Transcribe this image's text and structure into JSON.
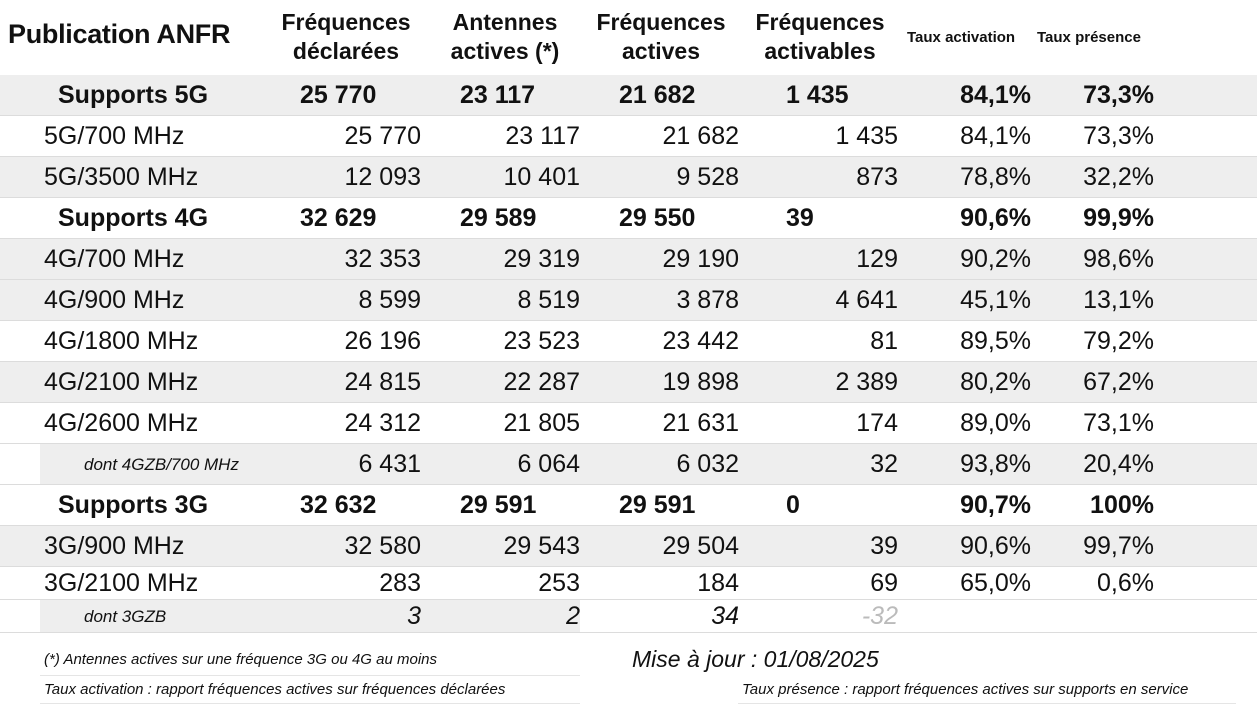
{
  "title": "Publication ANFR",
  "headers": {
    "declared": [
      "Fréquences",
      "déclarées"
    ],
    "antennas": [
      "Antennes",
      "actives (*)"
    ],
    "active": [
      "Fréquences",
      "actives"
    ],
    "activable": [
      "Fréquences",
      "activables"
    ],
    "rate_activation": "Taux activation",
    "rate_presence": "Taux présence"
  },
  "rows": [
    {
      "label": "Supports 5G",
      "declared": "25 770",
      "antennas": "23 117",
      "active": "21 682",
      "activable": "1 435",
      "activation": "84,1%",
      "presence": "73,3%"
    },
    {
      "label": "5G/700 MHz",
      "declared": "25 770",
      "antennas": "23 117",
      "active": "21 682",
      "activable": "1 435",
      "activation": "84,1%",
      "presence": "73,3%"
    },
    {
      "label": "5G/3500 MHz",
      "declared": "12 093",
      "antennas": "10 401",
      "active": "9 528",
      "activable": "873",
      "activation": "78,8%",
      "presence": "32,2%"
    },
    {
      "label": "Supports 4G",
      "declared": "32 629",
      "antennas": "29 589",
      "active": "29 550",
      "activable": "39",
      "activation": "90,6%",
      "presence": "99,9%"
    },
    {
      "label": "4G/700 MHz",
      "declared": "32 353",
      "antennas": "29 319",
      "active": "29 190",
      "activable": "129",
      "activation": "90,2%",
      "presence": "98,6%"
    },
    {
      "label": "4G/900 MHz",
      "declared": "8 599",
      "antennas": "8 519",
      "active": "3 878",
      "activable": "4 641",
      "activation": "45,1%",
      "presence": "13,1%"
    },
    {
      "label": "4G/1800 MHz",
      "declared": "26 196",
      "antennas": "23 523",
      "active": "23 442",
      "activable": "81",
      "activation": "89,5%",
      "presence": "79,2%"
    },
    {
      "label": "4G/2100 MHz",
      "declared": "24 815",
      "antennas": "22 287",
      "active": "19 898",
      "activable": "2 389",
      "activation": "80,2%",
      "presence": "67,2%"
    },
    {
      "label": "4G/2600 MHz",
      "declared": "24 312",
      "antennas": "21 805",
      "active": "21 631",
      "activable": "174",
      "activation": "89,0%",
      "presence": "73,1%"
    },
    {
      "label": "dont 4GZB/700 MHz",
      "declared": "6 431",
      "antennas": "6 064",
      "active": "6 032",
      "activable": "32",
      "activation": "93,8%",
      "presence": "20,4%"
    },
    {
      "label": "Supports 3G",
      "declared": "32 632",
      "antennas": "29 591",
      "active": "29 591",
      "activable": "0",
      "activation": "90,7%",
      "presence": "100%"
    },
    {
      "label": "3G/900 MHz",
      "declared": "32 580",
      "antennas": "29 543",
      "active": "29 504",
      "activable": "39",
      "activation": "90,6%",
      "presence": "99,7%"
    },
    {
      "label": "3G/2100 MHz",
      "declared": "283",
      "antennas": "253",
      "active": "184",
      "activable": "69",
      "activation": "65,0%",
      "presence": "0,6%"
    },
    {
      "label": "dont 3GZB",
      "declared": "3",
      "antennas": "2",
      "active": "34",
      "activable": "-32",
      "activation": "",
      "presence": ""
    }
  ],
  "footer": {
    "note_antennas": "(*) Antennes actives sur une fréquence 3G ou 4G au moins",
    "note_activation": "Taux activation : rapport fréquences actives sur fréquences déclarées",
    "note_presence": "Taux présence : rapport fréquences actives sur supports en service",
    "update": "Mise à jour : 01/08/2025"
  }
}
